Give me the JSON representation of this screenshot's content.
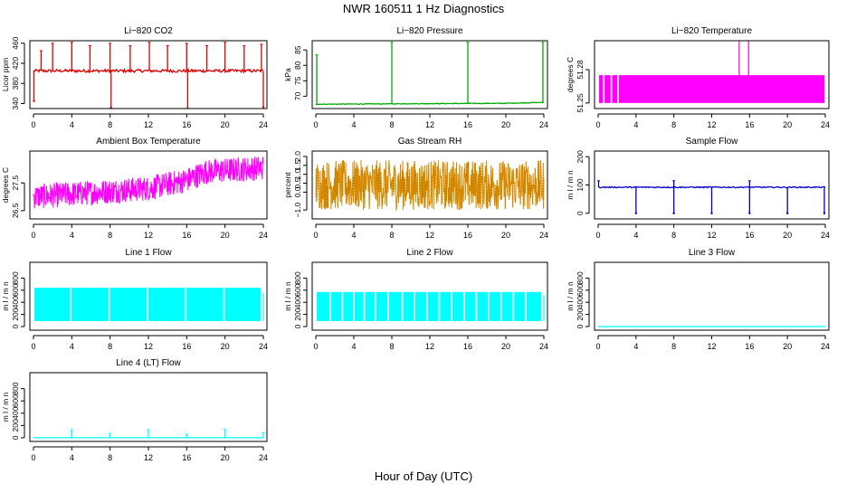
{
  "figure": {
    "title": "NWR  160511  1 Hz Diagnostics",
    "xlabel": "Hour of Day (UTC)"
  },
  "chart_data": [
    {
      "type": "line",
      "title": "Li−820 CO2",
      "ylabel": "Licor ppm",
      "ylim": [
        330,
        465
      ],
      "yticks": [
        "340",
        "380",
        "420",
        "460"
      ],
      "ytick_values": [
        340,
        380,
        420,
        460
      ],
      "xticks": [
        "0",
        "4",
        "8",
        "12",
        "16",
        "20",
        "24"
      ],
      "xlim": [
        0,
        24
      ],
      "color": "#e00000",
      "style": "baseline_spikes",
      "series": [
        {
          "baseline": 405,
          "jitter": 3,
          "spikes_up": [
            [
              0.8,
              445
            ],
            [
              2.0,
              460
            ],
            [
              4.0,
              462
            ],
            [
              5.9,
              455
            ],
            [
              8.0,
              460
            ],
            [
              10.1,
              455
            ],
            [
              12.1,
              462
            ],
            [
              14.0,
              455
            ],
            [
              16.0,
              460
            ],
            [
              18.1,
              455
            ],
            [
              20.0,
              462
            ],
            [
              22.0,
              455
            ],
            [
              23.8,
              458
            ]
          ],
          "spikes_down": [
            [
              0.05,
              345
            ],
            [
              8.1,
              332
            ],
            [
              16.1,
              330
            ],
            [
              24.0,
              333
            ]
          ]
        }
      ]
    },
    {
      "type": "line",
      "title": "Li−820 Pressure",
      "ylabel": "kPa",
      "ylim": [
        66,
        88
      ],
      "yticks": [
        "70",
        "75",
        "80",
        "85"
      ],
      "ytick_values": [
        70,
        75,
        80,
        85
      ],
      "xticks": [
        "0",
        "4",
        "8",
        "12",
        "16",
        "20",
        "24"
      ],
      "xlim": [
        0,
        24
      ],
      "color": "#00aa00",
      "style": "baseline_spikes",
      "series": [
        {
          "baseline": 67.6,
          "trend": [
            [
              0,
              67.4
            ],
            [
              12,
              67.6
            ],
            [
              20,
              67.7
            ],
            [
              24,
              68.0
            ]
          ],
          "jitter": 0.1,
          "spikes_up": [
            [
              0.1,
              83.5
            ],
            [
              8.0,
              87.5
            ],
            [
              16.0,
              87.5
            ],
            [
              23.9,
              87.5
            ]
          ],
          "spikes_down": []
        }
      ]
    },
    {
      "type": "area",
      "title": "Li−820 Temperature",
      "ylabel": "degrees C",
      "ylim": [
        51.245,
        51.306
      ],
      "yticks": [
        "51.25",
        "51.28"
      ],
      "ytick_values": [
        51.25,
        51.28
      ],
      "xticks": [
        "0",
        "4",
        "8",
        "12",
        "16",
        "20",
        "24"
      ],
      "xlim": [
        0,
        24
      ],
      "color": "#ff00ff",
      "style": "band",
      "series": [
        {
          "low": 51.25,
          "high": 51.275,
          "from": 0.1,
          "to": 24,
          "gaps": [
            0.6,
            1.4,
            2.1
          ],
          "spikes_up": [
            [
              14.9,
              51.306
            ],
            [
              15.9,
              51.306
            ]
          ]
        }
      ]
    },
    {
      "type": "line",
      "title": "Ambient Box Temperature",
      "ylabel": "degrees C",
      "ylim": [
        26.2,
        28.65
      ],
      "yticks": [
        "26.5",
        "27.5"
      ],
      "ytick_values": [
        26.5,
        27.5
      ],
      "xticks": [
        "0",
        "4",
        "8",
        "12",
        "16",
        "20",
        "24"
      ],
      "xlim": [
        0,
        24
      ],
      "color": "#ff00ff",
      "style": "noise",
      "series": [
        {
          "mean": [
            [
              0,
              27.0
            ],
            [
              12,
              27.3
            ],
            [
              16,
              27.6
            ],
            [
              18,
              27.9
            ],
            [
              24,
              28.05
            ]
          ],
          "amplitude": 0.45
        }
      ]
    },
    {
      "type": "line",
      "title": "Gas Stream RH",
      "ylabel": "percent",
      "ylim": [
        -1.5,
        2.3
      ],
      "yticks": [
        "−1.0",
        "0.0",
        "0.5",
        "1.0",
        "1.5",
        "2.0"
      ],
      "ytick_values": [
        -1.0,
        0.0,
        0.5,
        1.0,
        1.5,
        2.0
      ],
      "xticks": [
        "0",
        "4",
        "8",
        "12",
        "16",
        "20",
        "24"
      ],
      "xlim": [
        0,
        24
      ],
      "color": "#e69500",
      "style": "noise",
      "series": [
        {
          "mean": [
            [
              0,
              0.4
            ],
            [
              24,
              0.4
            ]
          ],
          "amplitude": 1.4
        }
      ]
    },
    {
      "type": "line",
      "title": "Sample Flow",
      "ylabel": "m l / m n",
      "ylim": [
        -20,
        220
      ],
      "yticks": [
        "0",
        "100",
        "200"
      ],
      "ytick_values": [
        0,
        100,
        200
      ],
      "xticks": [
        "0",
        "4",
        "8",
        "12",
        "16",
        "20",
        "24"
      ],
      "xlim": [
        0,
        24
      ],
      "color": "#0000cc",
      "style": "baseline_spikes",
      "series": [
        {
          "baseline": 92,
          "jitter": 2,
          "spikes_up": [
            [
              0.05,
              115
            ],
            [
              8.0,
              115
            ],
            [
              16.0,
              115
            ]
          ],
          "spikes_down": [
            [
              4.0,
              0
            ],
            [
              8.0,
              0
            ],
            [
              12.0,
              0
            ],
            [
              16.0,
              0
            ],
            [
              20.0,
              0
            ],
            [
              23.9,
              0
            ]
          ]
        }
      ]
    },
    {
      "type": "line",
      "title": "Line 1 Flow",
      "ylabel": "m l / m n",
      "ylim": [
        -60,
        1060
      ],
      "yticks": [
        "0",
        "200",
        "400",
        "600",
        "800"
      ],
      "ytick_values": [
        0,
        200,
        400,
        600,
        800
      ],
      "xticks": [
        "0",
        "4",
        "8",
        "12",
        "16",
        "20",
        "24"
      ],
      "xlim": [
        0,
        24
      ],
      "color": "#00ffff",
      "style": "band",
      "series": [
        {
          "low": 90,
          "high": 640,
          "from": 0.1,
          "to": 23.8,
          "gaps": [
            3.9,
            7.9,
            11.9,
            15.9,
            19.9
          ],
          "spikes_up": [
            [
              24.0,
              560
            ]
          ]
        }
      ]
    },
    {
      "type": "line",
      "title": "Line 2 Flow",
      "ylabel": "m l / m n",
      "ylim": [
        -60,
        1060
      ],
      "yticks": [
        "0",
        "200",
        "400",
        "600",
        "800"
      ],
      "ytick_values": [
        0,
        200,
        400,
        600,
        800
      ],
      "xticks": [
        "0",
        "4",
        "8",
        "12",
        "16",
        "20",
        "24"
      ],
      "xlim": [
        0,
        24
      ],
      "color": "#00ffff",
      "style": "band",
      "series": [
        {
          "low": 90,
          "high": 570,
          "from": 0.1,
          "to": 23.8,
          "gaps": [
            1.5,
            2.8,
            4.0,
            5.1,
            6.3,
            7.6,
            9.1,
            10.4,
            11.7,
            13.0,
            14.3,
            15.6,
            16.9,
            18.2,
            19.5,
            20.8,
            22.1
          ],
          "spikes_up": [
            [
              24.0,
              520
            ]
          ]
        }
      ]
    },
    {
      "type": "line",
      "title": "Line 3 Flow",
      "ylabel": "m l / m n",
      "ylim": [
        -60,
        1060
      ],
      "yticks": [
        "0",
        "200",
        "400",
        "600",
        "800"
      ],
      "ytick_values": [
        0,
        200,
        400,
        600,
        800
      ],
      "xticks": [
        "0",
        "4",
        "8",
        "12",
        "16",
        "20",
        "24"
      ],
      "xlim": [
        0,
        24
      ],
      "color": "#00ffff",
      "style": "baseline_spikes",
      "series": [
        {
          "baseline": 0,
          "jitter": 0,
          "spikes_up": [],
          "spikes_down": []
        }
      ]
    },
    {
      "type": "line",
      "title": "Line 4 (LT) Flow",
      "ylabel": "m l / m n",
      "ylim": [
        -60,
        1060
      ],
      "yticks": [
        "0",
        "200",
        "400",
        "600",
        "800"
      ],
      "ytick_values": [
        0,
        200,
        400,
        600,
        800
      ],
      "xticks": [
        "0",
        "4",
        "8",
        "12",
        "16",
        "20",
        "24"
      ],
      "xlim": [
        0,
        24
      ],
      "color": "#00ffff",
      "style": "baseline_spikes",
      "series": [
        {
          "baseline": 0,
          "jitter": 0,
          "spikes_up": [
            [
              4.0,
              130
            ],
            [
              8.0,
              70
            ],
            [
              12.0,
              130
            ],
            [
              16.0,
              60
            ],
            [
              20.0,
              140
            ],
            [
              24.0,
              80
            ]
          ],
          "spikes_down": []
        }
      ]
    }
  ]
}
